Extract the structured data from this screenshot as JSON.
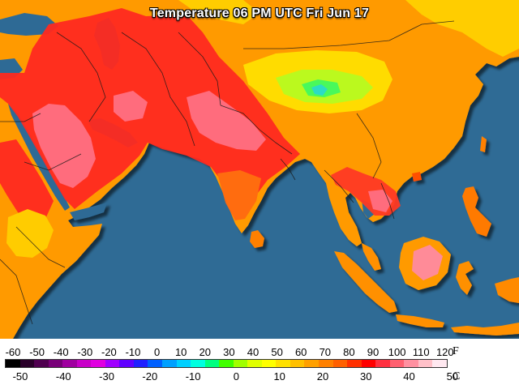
{
  "map": {
    "title": "Temperature 06 PM UTC Fri Jun 17",
    "colors": {
      "ocean": "#2f6b95",
      "warm": "#ffaa00",
      "hot": "#ff8000",
      "very_hot": "#ff2020",
      "extreme": "#ff5a70",
      "mild": "#ffd000",
      "cool": "#a8ff00",
      "cold": "#20ffa0",
      "border": "#1a1a1a"
    }
  },
  "legend": {
    "fahrenheit_ticks": [
      "-60",
      "-50",
      "-40",
      "-30",
      "-20",
      "-10",
      "0",
      "10",
      "20",
      "30",
      "40",
      "50",
      "60",
      "70",
      "80",
      "90",
      "100",
      "110",
      "120"
    ],
    "celsius_ticks": [
      "-50",
      "-40",
      "-30",
      "-20",
      "-10",
      "0",
      "10",
      "20",
      "30",
      "40",
      "50"
    ],
    "fahrenheit_unit": "F",
    "celsius_unit": "C",
    "colors": [
      "#000000",
      "#2a002a",
      "#500050",
      "#780078",
      "#a000a0",
      "#c800c8",
      "#e000e0",
      "#a000ff",
      "#6000ff",
      "#2020ff",
      "#0060ff",
      "#00a0ff",
      "#00d0ff",
      "#00ffe0",
      "#00ff80",
      "#40ff00",
      "#a0ff00",
      "#e0ff00",
      "#ffff00",
      "#ffe000",
      "#ffc000",
      "#ffa000",
      "#ff8000",
      "#ff6000",
      "#ff3000",
      "#ff0000",
      "#ff3040",
      "#ff6070",
      "#ff90a0",
      "#ffc0c8",
      "#ffe8f0"
    ]
  }
}
